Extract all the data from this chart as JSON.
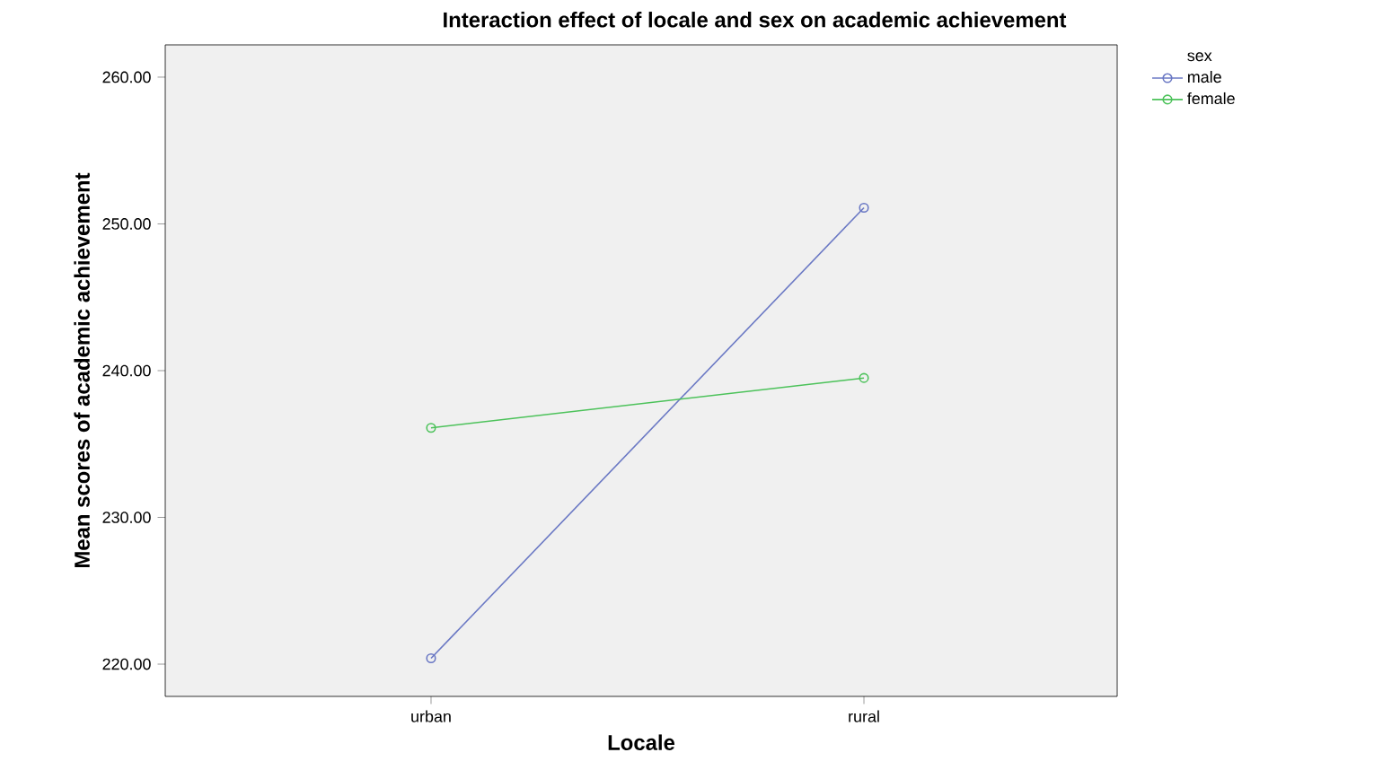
{
  "chart_data": {
    "type": "line",
    "title": "Interaction effect of locale and sex on academic achievement",
    "xlabel": "Locale",
    "ylabel": "Mean scores of academic achievement",
    "legend_title": "sex",
    "categories": [
      "urban",
      "rural"
    ],
    "series": [
      {
        "name": "male",
        "color": "#6a78c4",
        "values": [
          220.4,
          251.1
        ]
      },
      {
        "name": "female",
        "color": "#4cc25a",
        "values": [
          236.1,
          239.5
        ]
      }
    ],
    "ylim": [
      217.8,
      262.2
    ],
    "yticks": [
      {
        "value": 220,
        "label": "220.00"
      },
      {
        "value": 230,
        "label": "230.00"
      },
      {
        "value": 240,
        "label": "240.00"
      },
      {
        "value": 250,
        "label": "250.00"
      },
      {
        "value": 260,
        "label": "260.00"
      }
    ],
    "marker": "circle",
    "line_style": "solid",
    "legend": "top right",
    "grid": false
  }
}
